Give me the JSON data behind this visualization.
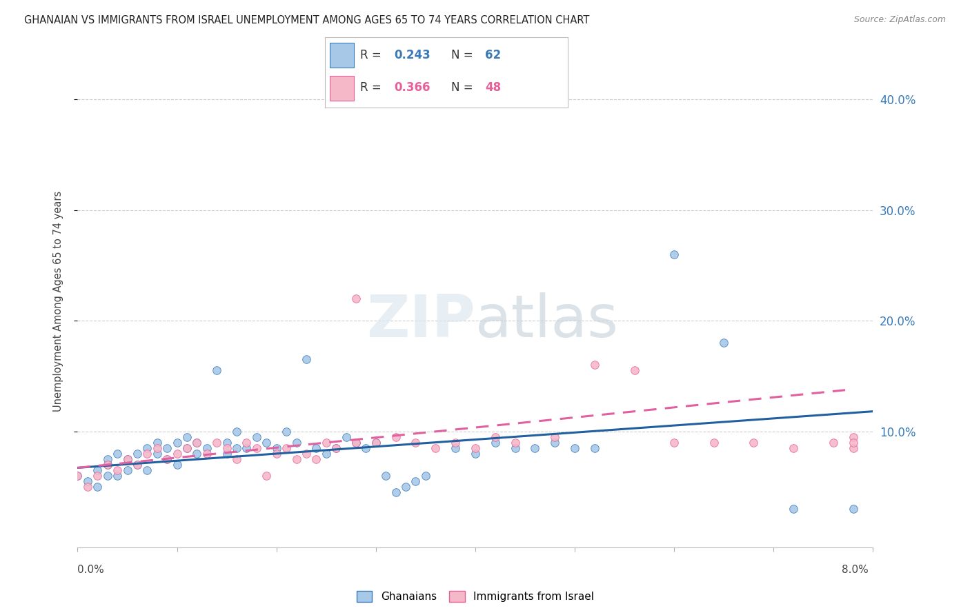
{
  "title": "GHANAIAN VS IMMIGRANTS FROM ISRAEL UNEMPLOYMENT AMONG AGES 65 TO 74 YEARS CORRELATION CHART",
  "source": "Source: ZipAtlas.com",
  "ylabel": "Unemployment Among Ages 65 to 74 years",
  "right_yticks": [
    "40.0%",
    "30.0%",
    "20.0%",
    "10.0%"
  ],
  "right_ytick_vals": [
    0.4,
    0.3,
    0.2,
    0.1
  ],
  "xlim": [
    0.0,
    0.08
  ],
  "ylim": [
    -0.005,
    0.44
  ],
  "legend_label1": "Ghanaians",
  "legend_label2": "Immigrants from Israel",
  "color_blue": "#a8c8e8",
  "color_pink": "#f4b8c8",
  "color_blue_dark": "#3a7ab8",
  "color_pink_dark": "#e8609a",
  "color_blue_text": "#3a7ab8",
  "color_pink_text": "#e8609a",
  "trendline_blue": "#2060a0",
  "trendline_pink": "#e060a0",
  "watermark_color": "#dde8f0",
  "ghanaian_x": [
    0.0,
    0.001,
    0.002,
    0.002,
    0.003,
    0.003,
    0.003,
    0.004,
    0.004,
    0.005,
    0.005,
    0.006,
    0.006,
    0.007,
    0.007,
    0.008,
    0.008,
    0.009,
    0.009,
    0.01,
    0.01,
    0.011,
    0.011,
    0.012,
    0.012,
    0.013,
    0.014,
    0.015,
    0.015,
    0.016,
    0.016,
    0.017,
    0.018,
    0.019,
    0.02,
    0.021,
    0.022,
    0.023,
    0.024,
    0.025,
    0.026,
    0.027,
    0.028,
    0.029,
    0.03,
    0.031,
    0.032,
    0.033,
    0.034,
    0.035,
    0.038,
    0.04,
    0.042,
    0.044,
    0.046,
    0.048,
    0.05,
    0.052,
    0.06,
    0.065,
    0.072,
    0.078
  ],
  "ghanaian_y": [
    0.06,
    0.055,
    0.05,
    0.065,
    0.06,
    0.07,
    0.075,
    0.06,
    0.08,
    0.065,
    0.075,
    0.07,
    0.08,
    0.065,
    0.085,
    0.08,
    0.09,
    0.075,
    0.085,
    0.07,
    0.09,
    0.085,
    0.095,
    0.08,
    0.09,
    0.085,
    0.155,
    0.08,
    0.09,
    0.085,
    0.1,
    0.085,
    0.095,
    0.09,
    0.085,
    0.1,
    0.09,
    0.165,
    0.085,
    0.08,
    0.085,
    0.095,
    0.09,
    0.085,
    0.09,
    0.06,
    0.045,
    0.05,
    0.055,
    0.06,
    0.085,
    0.08,
    0.09,
    0.085,
    0.085,
    0.09,
    0.085,
    0.085,
    0.26,
    0.18,
    0.03,
    0.03
  ],
  "israel_x": [
    0.0,
    0.001,
    0.002,
    0.003,
    0.004,
    0.005,
    0.006,
    0.007,
    0.008,
    0.009,
    0.01,
    0.011,
    0.012,
    0.013,
    0.014,
    0.015,
    0.016,
    0.017,
    0.018,
    0.019,
    0.02,
    0.021,
    0.022,
    0.023,
    0.024,
    0.025,
    0.026,
    0.028,
    0.03,
    0.032,
    0.034,
    0.036,
    0.038,
    0.04,
    0.042,
    0.044,
    0.048,
    0.052,
    0.056,
    0.06,
    0.064,
    0.068,
    0.072,
    0.076,
    0.078,
    0.078,
    0.078,
    0.028
  ],
  "israel_y": [
    0.06,
    0.05,
    0.06,
    0.07,
    0.065,
    0.075,
    0.07,
    0.08,
    0.085,
    0.075,
    0.08,
    0.085,
    0.09,
    0.08,
    0.09,
    0.085,
    0.075,
    0.09,
    0.085,
    0.06,
    0.08,
    0.085,
    0.075,
    0.08,
    0.075,
    0.09,
    0.085,
    0.09,
    0.09,
    0.095,
    0.09,
    0.085,
    0.09,
    0.085,
    0.095,
    0.09,
    0.095,
    0.16,
    0.155,
    0.09,
    0.09,
    0.09,
    0.085,
    0.09,
    0.085,
    0.095,
    0.09,
    0.22
  ],
  "blue_trend_x": [
    0.0,
    0.08
  ],
  "blue_trend_y": [
    0.067,
    0.118
  ],
  "pink_trend_x": [
    0.0,
    0.078
  ],
  "pink_trend_y": [
    0.067,
    0.138
  ]
}
